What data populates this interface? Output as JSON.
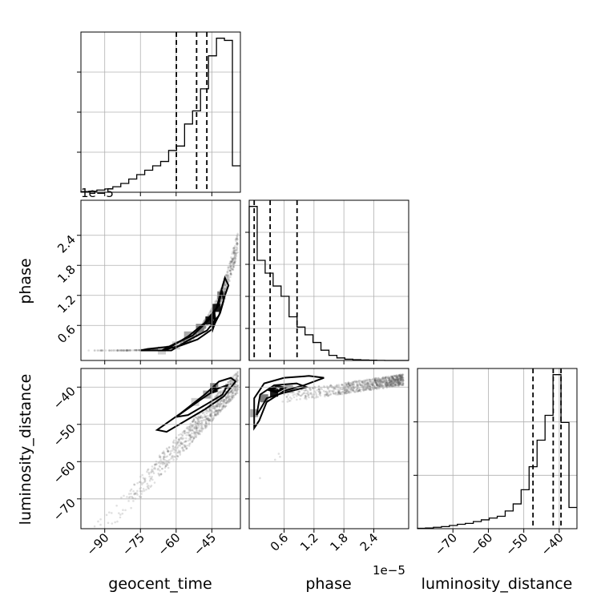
{
  "chart_data": {
    "type": "corner",
    "title": "",
    "parameters": [
      "geocent_time",
      "phase",
      "luminosity_distance"
    ],
    "grid": true,
    "colors": {
      "hist": "#000000",
      "quantile": "#000000",
      "density": "#444444",
      "points": "#555555",
      "grid": "#b0b0b0"
    },
    "offset_labels": {
      "phase_row": "1e−5",
      "phase_col": "1e−5"
    },
    "axes": {
      "geocent_time": {
        "range": [
          -100,
          -33
        ],
        "ticks": [
          -90,
          -75,
          -60,
          -45
        ],
        "tick_labels": [
          "−90",
          "−75",
          "−60",
          "−45"
        ]
      },
      "phase": {
        "range": [
          -0.1,
          3.1
        ],
        "ticks": [
          0.6,
          1.2,
          1.8,
          2.4
        ],
        "tick_labels": [
          "0.6",
          "1.2",
          "1.8",
          "2.4"
        ]
      },
      "luminosity_distance": {
        "range": [
          -78,
          -35
        ],
        "ticks": [
          -40,
          -50,
          -60,
          -70
        ],
        "tick_labels": [
          "−40",
          "−50",
          "−60",
          "−70"
        ]
      },
      "luminosity_distance_diag": {
        "range": [
          -80,
          -35
        ],
        "ticks": [
          -70,
          -60,
          -50,
          -40
        ],
        "tick_labels": [
          "−70",
          "−60",
          "−50",
          "−40"
        ]
      }
    },
    "marginals": {
      "geocent_time": {
        "bin_edges": [
          -100,
          -96.65,
          -93.3,
          -89.95,
          -86.6,
          -83.25,
          -79.9,
          -76.55,
          -73.2,
          -69.85,
          -66.5,
          -63.15,
          -59.8,
          -56.45,
          -53.1,
          -49.75,
          -46.4,
          -43.05,
          -39.7,
          -36.35,
          -33
        ],
        "counts": [
          0.3,
          0.5,
          1,
          1.5,
          2.5,
          4,
          6,
          8,
          10,
          12,
          14,
          19,
          21,
          31,
          37,
          47,
          62,
          70,
          69,
          12
        ],
        "quantiles": [
          -59.9,
          -51.4,
          -47.1
        ]
      },
      "phase": {
        "bin_edges": [
          -0.1,
          0.06,
          0.22,
          0.38,
          0.54,
          0.7,
          0.86,
          1.02,
          1.18,
          1.34,
          1.5,
          1.66,
          1.82,
          1.98,
          2.14,
          2.3,
          2.46,
          2.62,
          2.78,
          2.94,
          3.1
        ],
        "counts": [
          60,
          39,
          34,
          29,
          25,
          17,
          13,
          10,
          7,
          4,
          2,
          1,
          0.5,
          0.3,
          0.2,
          0.1,
          0.05,
          0,
          0,
          0
        ],
        "quantiles": [
          0.0,
          0.32,
          0.86
        ]
      },
      "luminosity_distance": {
        "bin_edges": [
          -80,
          -77.75,
          -75.5,
          -73.25,
          -71,
          -68.75,
          -66.5,
          -64.25,
          -62,
          -59.75,
          -57.5,
          -55.25,
          -53,
          -50.75,
          -48.5,
          -46.25,
          -44,
          -41.75,
          -39.5,
          -37.25,
          -35
        ],
        "counts": [
          0.2,
          0.4,
          0.8,
          1.2,
          1.8,
          2.5,
          3,
          4,
          5,
          6,
          7,
          10,
          14,
          22,
          35,
          50,
          64,
          87,
          60,
          12
        ],
        "quantiles": [
          -47.4,
          -41.7,
          -39.5
        ]
      }
    },
    "pairs": [
      {
        "x": "geocent_time",
        "y": "phase",
        "density_blocks": [
          [
            -66,
            0.1,
            1
          ],
          [
            -60,
            0.2,
            1
          ],
          [
            -55,
            0.4,
            2
          ],
          [
            -50,
            0.55,
            3
          ],
          [
            -46,
            0.7,
            4
          ],
          [
            -43,
            0.95,
            4
          ],
          [
            -41,
            1.2,
            3
          ]
        ],
        "contours": [
          [
            [
              -75,
              0.1
            ],
            [
              -62,
              0.1
            ],
            [
              -55,
              0.3
            ],
            [
              -47,
              0.5
            ],
            [
              -42,
              0.8
            ],
            [
              -39.5,
              1.2
            ],
            [
              -38,
              1.4
            ],
            [
              -39.5,
              1.55
            ],
            [
              -41,
              1.3
            ],
            [
              -43,
              0.95
            ],
            [
              -48,
              0.65
            ],
            [
              -55,
              0.38
            ],
            [
              -62,
              0.18
            ],
            [
              -72,
              0.13
            ],
            [
              -75,
              0.1
            ]
          ],
          [
            [
              -66,
              0.1
            ],
            [
              -58,
              0.2
            ],
            [
              -51,
              0.32
            ],
            [
              -45,
              0.52
            ],
            [
              -41.5,
              0.85
            ],
            [
              -40,
              1.1
            ],
            [
              -40.8,
              1.3
            ],
            [
              -42.2,
              1.0
            ],
            [
              -46,
              0.72
            ],
            [
              -53,
              0.4
            ],
            [
              -60,
              0.25
            ],
            [
              -66,
              0.1
            ]
          ],
          [
            [
              -44.6,
              0.55
            ],
            [
              -43.6,
              0.68
            ],
            [
              -44.0,
              0.82
            ],
            [
              -45.2,
              0.72
            ],
            [
              -44.6,
              0.55
            ]
          ]
        ],
        "scatter_band": {
          "x0": -100,
          "x1": -34,
          "curve": "exp"
        }
      },
      {
        "x": "geocent_time",
        "y": "luminosity_distance",
        "density_blocks": [
          [
            -52,
            -44,
            1
          ],
          [
            -47,
            -42,
            2
          ],
          [
            -44,
            -40,
            3
          ]
        ],
        "contours": [
          [
            [
              -68,
              -51.5
            ],
            [
              -58,
              -47
            ],
            [
              -48,
              -42
            ],
            [
              -42,
              -38.5
            ],
            [
              -37,
              -37.5
            ],
            [
              -35,
              -38.5
            ],
            [
              -40,
              -42.5
            ],
            [
              -48,
              -46
            ],
            [
              -56,
              -49
            ],
            [
              -64,
              -52
            ],
            [
              -68,
              -51.5
            ]
          ],
          [
            [
              -60,
              -48
            ],
            [
              -50,
              -43.5
            ],
            [
              -43,
              -40.5
            ],
            [
              -38.5,
              -39.5
            ],
            [
              -40.5,
              -42
            ],
            [
              -47,
              -44.5
            ],
            [
              -55,
              -47.5
            ],
            [
              -60,
              -48
            ]
          ],
          [
            [
              -45.5,
              -40.8
            ],
            [
              -43.8,
              -40.0
            ],
            [
              -43.2,
              -41.0
            ],
            [
              -45.0,
              -41.4
            ],
            [
              -45.5,
              -40.8
            ]
          ]
        ],
        "scatter_band": {
          "x0": -100,
          "x1": -34,
          "curve": "linear"
        }
      },
      {
        "x": "phase",
        "y": "luminosity_distance",
        "density_blocks": [
          [
            0.0,
            -47,
            2
          ],
          [
            0.2,
            -43,
            3
          ],
          [
            0.4,
            -41.5,
            4
          ],
          [
            0.7,
            -40.5,
            2
          ]
        ],
        "contours": [
          [
            [
              0.0,
              -51
            ],
            [
              0.0,
              -43
            ],
            [
              0.2,
              -39
            ],
            [
              0.6,
              -37.5
            ],
            [
              1.1,
              -37
            ],
            [
              1.4,
              -37.5
            ],
            [
              1.0,
              -39.5
            ],
            [
              0.6,
              -41
            ],
            [
              0.25,
              -44
            ],
            [
              0.1,
              -49
            ],
            [
              0.0,
              -51
            ]
          ],
          [
            [
              0.05,
              -47.5
            ],
            [
              0.12,
              -42
            ],
            [
              0.4,
              -39.5
            ],
            [
              0.85,
              -39
            ],
            [
              1.05,
              -40
            ],
            [
              0.6,
              -41.5
            ],
            [
              0.25,
              -43
            ],
            [
              0.12,
              -46
            ],
            [
              0.05,
              -47.5
            ]
          ],
          [
            [
              0.32,
              -40.8
            ],
            [
              0.46,
              -39.8
            ],
            [
              0.6,
              -40.2
            ],
            [
              0.45,
              -41.3
            ],
            [
              0.32,
              -40.8
            ]
          ]
        ],
        "scatter_band": {
          "x0": -0.1,
          "x1": 3.0,
          "curve": "sqrt"
        }
      }
    ]
  }
}
